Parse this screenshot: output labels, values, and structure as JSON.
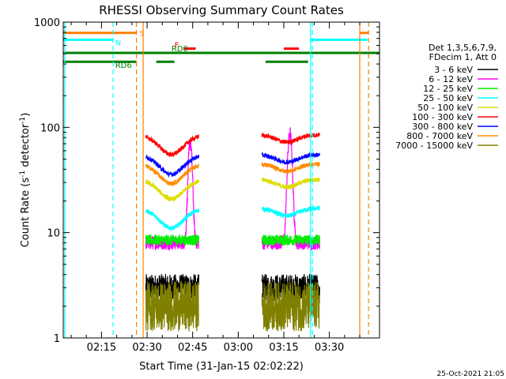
{
  "chart_data": {
    "type": "line",
    "title": "RHESSI Observing Summary Count Rates",
    "xlabel": "Start Time (31-Jan-15 02:02:22)",
    "ylabel_main": "Count Rate (s",
    "ylabel_sup1": "-1",
    "ylabel_mid": " detector",
    "ylabel_sup2": "-1",
    "ylabel_end": ")",
    "y_scale": "log",
    "ylim": [
      1,
      1000
    ],
    "xlim_minutes": [
      122.4,
      226.5
    ],
    "x_ticks": [
      {
        "label": "02:15",
        "minutes": 135
      },
      {
        "label": "02:30",
        "minutes": 150
      },
      {
        "label": "02:45",
        "minutes": 165
      },
      {
        "label": "03:00",
        "minutes": 180
      },
      {
        "label": "03:15",
        "minutes": 195
      },
      {
        "label": "03:30",
        "minutes": 210
      }
    ],
    "y_ticks": [
      {
        "label": "1",
        "value": 1
      },
      {
        "label": "10",
        "value": 10
      },
      {
        "label": "100",
        "value": 100
      },
      {
        "label": "1000",
        "value": 1000
      }
    ],
    "legend_header": [
      "Det 1,3,5,6,7,9,",
      "FDecim 1, Att 0"
    ],
    "series": [
      {
        "name": "3 - 6 keV",
        "color": "#000000",
        "level": 3.0,
        "profile": "low"
      },
      {
        "name": "6 - 12 keV",
        "color": "#ff00ff",
        "level": 8.0,
        "profile": "flare"
      },
      {
        "name": "12 - 25 keV",
        "color": "#00ee00",
        "level": 8.5,
        "profile": "flat"
      },
      {
        "name": "25 - 50 keV",
        "color": "#00ffff",
        "level": 17.0,
        "profile": "dip"
      },
      {
        "name": "50 - 100 keV",
        "color": "#dddd00",
        "level": 32.0,
        "profile": "dip"
      },
      {
        "name": "100 - 300 keV",
        "color": "#ff0000",
        "level": 85.0,
        "profile": "dip"
      },
      {
        "name": "300 - 800 keV",
        "color": "#0000ff",
        "level": 55.0,
        "profile": "dip"
      },
      {
        "name": "800 - 7000 keV",
        "color": "#ff8c00",
        "level": 45.0,
        "profile": "dip"
      },
      {
        "name": "7000 - 15000 keV",
        "color": "#808000",
        "level": 2.0,
        "profile": "noisy"
      }
    ],
    "data_windows_minutes": [
      [
        149.6,
        167.0
      ],
      [
        187.8,
        206.8
      ]
    ],
    "flag_bars": [
      {
        "label": "S",
        "color": "#ff8000",
        "y_value": 790,
        "x_ranges": [
          [
            122.4,
            146.5
          ],
          [
            220.0,
            223.0
          ]
        ]
      },
      {
        "label": "N",
        "color": "#00ffff",
        "y_value": 680,
        "x_ranges": [
          [
            122.4,
            138.8
          ],
          [
            203.8,
            222.5
          ]
        ]
      },
      {
        "label": "RD0",
        "color": "#008000",
        "y_value": 510,
        "x_ranges": [
          [
            122.4,
            226.5
          ]
        ]
      },
      {
        "label": "RD6",
        "color": "#008000",
        "y_value": 420,
        "x_ranges": [
          [
            122.4,
            146.5
          ],
          [
            153.0,
            159.0
          ],
          [
            189.0,
            203.0
          ]
        ]
      },
      {
        "label": "F",
        "color": "#ff0000",
        "y_value": 560,
        "x_ranges": [
          [
            162.0,
            166.0
          ],
          [
            195.0,
            200.0
          ]
        ]
      }
    ],
    "vertical_markers": [
      {
        "minutes": 122.9,
        "color": "#00ffff",
        "style": "solid"
      },
      {
        "minutes": 138.8,
        "color": "#00ffff",
        "style": "dashed"
      },
      {
        "minutes": 146.5,
        "color": "#ff8000",
        "style": "dashed"
      },
      {
        "minutes": 148.7,
        "color": "#ff8000",
        "style": "solid"
      },
      {
        "minutes": 203.8,
        "color": "#00ffff",
        "style": "solid"
      },
      {
        "minutes": 204.4,
        "color": "#00ffff",
        "style": "dashed"
      },
      {
        "minutes": 220.0,
        "color": "#ff8000",
        "style": "solid"
      },
      {
        "minutes": 222.9,
        "color": "#ff8000",
        "style": "dashed"
      }
    ],
    "timestamp": "25-Oct-2021 21:05"
  }
}
